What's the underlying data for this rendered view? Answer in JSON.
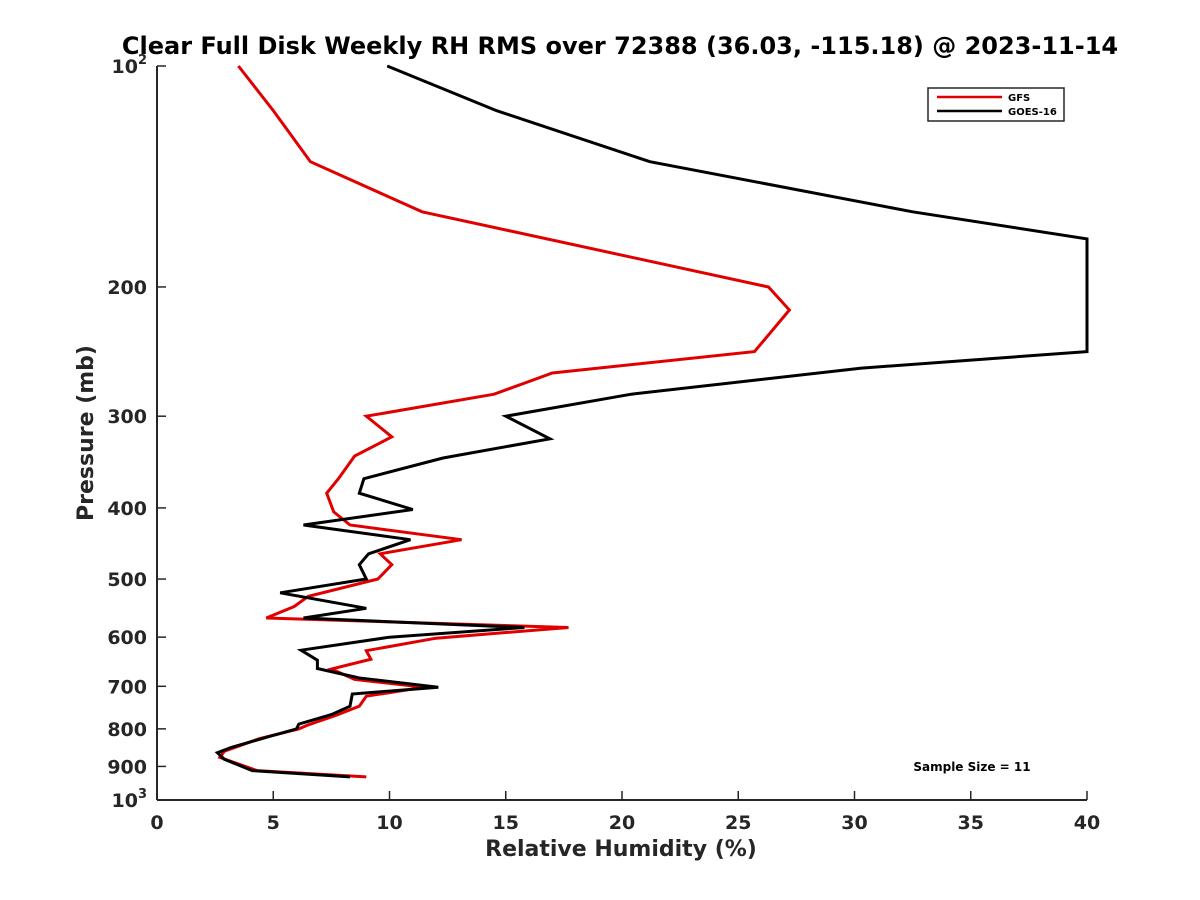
{
  "chart_data": {
    "type": "line",
    "title": "Clear Full Disk Weekly RH RMS over 72388 (36.03, -115.18) @ 2023-11-14",
    "xlabel": "Relative Humidity (%)",
    "ylabel": "Pressure (mb)",
    "xlim": [
      0,
      40
    ],
    "ylim": [
      100,
      1000
    ],
    "y_scale": "log",
    "y_reversed": true,
    "grid": false,
    "legend_position": "top-right",
    "x_ticks": [
      0,
      5,
      10,
      15,
      20,
      25,
      30,
      35,
      40
    ],
    "x_tick_labels": [
      "0",
      "5",
      "10",
      "15",
      "20",
      "25",
      "30",
      "35",
      "40"
    ],
    "y_ticks": [
      100,
      200,
      300,
      400,
      500,
      600,
      700,
      800,
      900,
      1000
    ],
    "y_tick_labels": [
      {
        "base": "10",
        "exp": "2"
      },
      {
        "base": "200",
        "exp": ""
      },
      {
        "base": "300",
        "exp": ""
      },
      {
        "base": "400",
        "exp": ""
      },
      {
        "base": "500",
        "exp": ""
      },
      {
        "base": "600",
        "exp": ""
      },
      {
        "base": "700",
        "exp": ""
      },
      {
        "base": "800",
        "exp": ""
      },
      {
        "base": "900",
        "exp": ""
      },
      {
        "base": "10",
        "exp": "3"
      }
    ],
    "annotation": "Sample Size = 11",
    "series": [
      {
        "name": "GFS",
        "color": "#e00000",
        "points": [
          {
            "x": 3.5,
            "y": 100
          },
          {
            "x": 5.0,
            "y": 115
          },
          {
            "x": 6.6,
            "y": 135
          },
          {
            "x": 11.4,
            "y": 158
          },
          {
            "x": 26.3,
            "y": 200
          },
          {
            "x": 27.2,
            "y": 215
          },
          {
            "x": 25.7,
            "y": 245
          },
          {
            "x": 17.0,
            "y": 262
          },
          {
            "x": 14.5,
            "y": 280
          },
          {
            "x": 9.0,
            "y": 300
          },
          {
            "x": 10.1,
            "y": 320
          },
          {
            "x": 8.5,
            "y": 340
          },
          {
            "x": 7.8,
            "y": 365
          },
          {
            "x": 7.3,
            "y": 382
          },
          {
            "x": 7.6,
            "y": 405
          },
          {
            "x": 8.3,
            "y": 422
          },
          {
            "x": 13.1,
            "y": 442
          },
          {
            "x": 9.6,
            "y": 462
          },
          {
            "x": 10.1,
            "y": 478
          },
          {
            "x": 9.5,
            "y": 500
          },
          {
            "x": 6.5,
            "y": 528
          },
          {
            "x": 5.9,
            "y": 545
          },
          {
            "x": 4.7,
            "y": 565
          },
          {
            "x": 17.7,
            "y": 582
          },
          {
            "x": 12.0,
            "y": 602
          },
          {
            "x": 9.0,
            "y": 626
          },
          {
            "x": 9.2,
            "y": 643
          },
          {
            "x": 7.5,
            "y": 663
          },
          {
            "x": 8.5,
            "y": 685
          },
          {
            "x": 11.5,
            "y": 702
          },
          {
            "x": 9.0,
            "y": 722
          },
          {
            "x": 8.7,
            "y": 745
          },
          {
            "x": 7.7,
            "y": 767
          },
          {
            "x": 6.5,
            "y": 790
          },
          {
            "x": 6.1,
            "y": 800
          },
          {
            "x": 4.4,
            "y": 825
          },
          {
            "x": 2.9,
            "y": 858
          },
          {
            "x": 2.7,
            "y": 875
          },
          {
            "x": 4.3,
            "y": 912
          },
          {
            "x": 9.0,
            "y": 930
          }
        ]
      },
      {
        "name": "GOES-16",
        "color": "#000000",
        "points": [
          {
            "x": 9.9,
            "y": 100
          },
          {
            "x": 14.6,
            "y": 115
          },
          {
            "x": 21.2,
            "y": 135
          },
          {
            "x": 32.5,
            "y": 158
          },
          {
            "x": 40.0,
            "y": 172
          },
          {
            "x": 40.0,
            "y": 245
          },
          {
            "x": 30.3,
            "y": 258
          },
          {
            "x": 20.4,
            "y": 280
          },
          {
            "x": 15.0,
            "y": 300
          },
          {
            "x": 16.9,
            "y": 322
          },
          {
            "x": 12.3,
            "y": 342
          },
          {
            "x": 8.9,
            "y": 365
          },
          {
            "x": 8.7,
            "y": 382
          },
          {
            "x": 11.0,
            "y": 402
          },
          {
            "x": 6.3,
            "y": 422
          },
          {
            "x": 10.9,
            "y": 442
          },
          {
            "x": 9.1,
            "y": 462
          },
          {
            "x": 8.7,
            "y": 478
          },
          {
            "x": 9.0,
            "y": 500
          },
          {
            "x": 5.3,
            "y": 522
          },
          {
            "x": 9.0,
            "y": 548
          },
          {
            "x": 6.3,
            "y": 565
          },
          {
            "x": 15.8,
            "y": 582
          },
          {
            "x": 10.0,
            "y": 600
          },
          {
            "x": 6.2,
            "y": 625
          },
          {
            "x": 6.9,
            "y": 645
          },
          {
            "x": 6.9,
            "y": 662
          },
          {
            "x": 8.7,
            "y": 682
          },
          {
            "x": 12.1,
            "y": 702
          },
          {
            "x": 8.4,
            "y": 717
          },
          {
            "x": 8.3,
            "y": 745
          },
          {
            "x": 7.5,
            "y": 765
          },
          {
            "x": 6.1,
            "y": 788
          },
          {
            "x": 6.0,
            "y": 800
          },
          {
            "x": 4.8,
            "y": 820
          },
          {
            "x": 3.2,
            "y": 848
          },
          {
            "x": 2.6,
            "y": 862
          },
          {
            "x": 2.9,
            "y": 880
          },
          {
            "x": 4.1,
            "y": 912
          },
          {
            "x": 8.3,
            "y": 930
          }
        ]
      }
    ]
  }
}
